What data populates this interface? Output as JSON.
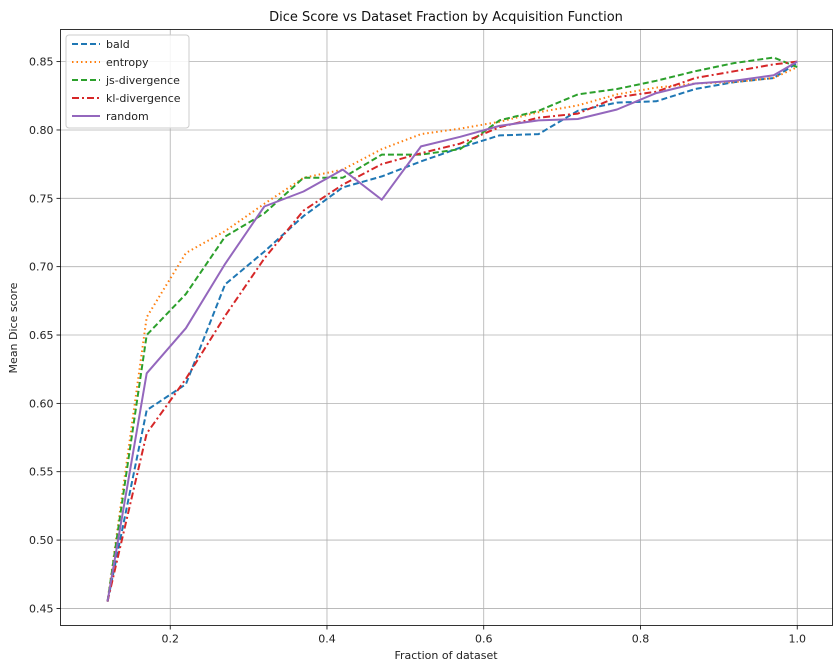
{
  "chart_data": {
    "type": "line",
    "title": "Dice Score vs Dataset Fraction by Acquisition Function",
    "xlabel": "Fraction of dataset",
    "ylabel": "Mean Dice score",
    "xlim": [
      0.06,
      1.045
    ],
    "ylim": [
      0.4375,
      0.8735
    ],
    "xticks": [
      0.2,
      0.4,
      0.6,
      0.8,
      1.0
    ],
    "xtick_labels": [
      "0.2",
      "0.4",
      "0.6",
      "0.8",
      "1.0"
    ],
    "yticks": [
      0.45,
      0.5,
      0.55,
      0.6,
      0.65,
      0.7,
      0.75,
      0.8,
      0.85
    ],
    "ytick_labels": [
      "0.45",
      "0.50",
      "0.55",
      "0.60",
      "0.65",
      "0.70",
      "0.75",
      "0.80",
      "0.85"
    ],
    "grid": true,
    "legend_position": "top-left",
    "series": [
      {
        "name": "bald",
        "color": "#1f77b4",
        "dash": "dashed",
        "x": [
          0.12,
          0.17,
          0.22,
          0.27,
          0.32,
          0.37,
          0.42,
          0.47,
          0.52,
          0.57,
          0.62,
          0.67,
          0.72,
          0.77,
          0.82,
          0.87,
          0.92,
          0.97,
          1.0
        ],
        "y": [
          0.455,
          0.595,
          0.614,
          0.687,
          0.711,
          0.737,
          0.758,
          0.766,
          0.777,
          0.787,
          0.796,
          0.797,
          0.814,
          0.82,
          0.821,
          0.83,
          0.835,
          0.838,
          0.849
        ]
      },
      {
        "name": "entropy",
        "color": "#ff7f0e",
        "dash": "dotted",
        "x": [
          0.12,
          0.17,
          0.22,
          0.27,
          0.32,
          0.37,
          0.42,
          0.47,
          0.52,
          0.57,
          0.62,
          0.67,
          0.72,
          0.77,
          0.82,
          0.87,
          0.92,
          0.97,
          1.0
        ],
        "y": [
          0.455,
          0.663,
          0.71,
          0.726,
          0.746,
          0.765,
          0.771,
          0.786,
          0.797,
          0.801,
          0.806,
          0.813,
          0.818,
          0.826,
          0.831,
          0.834,
          0.835,
          0.838,
          0.846
        ]
      },
      {
        "name": "js-divergence",
        "color": "#2ca02c",
        "dash": "dashed",
        "x": [
          0.12,
          0.17,
          0.22,
          0.27,
          0.32,
          0.37,
          0.42,
          0.47,
          0.52,
          0.57,
          0.62,
          0.67,
          0.72,
          0.77,
          0.82,
          0.87,
          0.92,
          0.97,
          1.0
        ],
        "y": [
          0.455,
          0.65,
          0.68,
          0.722,
          0.739,
          0.765,
          0.765,
          0.782,
          0.782,
          0.786,
          0.807,
          0.814,
          0.826,
          0.83,
          0.836,
          0.843,
          0.849,
          0.853,
          0.846
        ]
      },
      {
        "name": "kl-divergence",
        "color": "#d62728",
        "dash": "dashdot",
        "x": [
          0.12,
          0.17,
          0.22,
          0.27,
          0.32,
          0.37,
          0.42,
          0.47,
          0.52,
          0.57,
          0.62,
          0.67,
          0.72,
          0.77,
          0.82,
          0.87,
          0.92,
          0.97,
          1.0
        ],
        "y": [
          0.455,
          0.578,
          0.618,
          0.664,
          0.706,
          0.741,
          0.76,
          0.775,
          0.783,
          0.79,
          0.802,
          0.809,
          0.812,
          0.824,
          0.828,
          0.838,
          0.843,
          0.848,
          0.85
        ]
      },
      {
        "name": "random",
        "color": "#9467bd",
        "dash": "solid",
        "x": [
          0.12,
          0.17,
          0.22,
          0.27,
          0.32,
          0.37,
          0.42,
          0.47,
          0.52,
          0.57,
          0.62,
          0.67,
          0.72,
          0.77,
          0.82,
          0.87,
          0.92,
          0.97,
          1.0
        ],
        "y": [
          0.455,
          0.622,
          0.655,
          0.702,
          0.744,
          0.755,
          0.771,
          0.749,
          0.788,
          0.795,
          0.803,
          0.807,
          0.808,
          0.815,
          0.827,
          0.834,
          0.836,
          0.84,
          0.85
        ]
      }
    ]
  }
}
